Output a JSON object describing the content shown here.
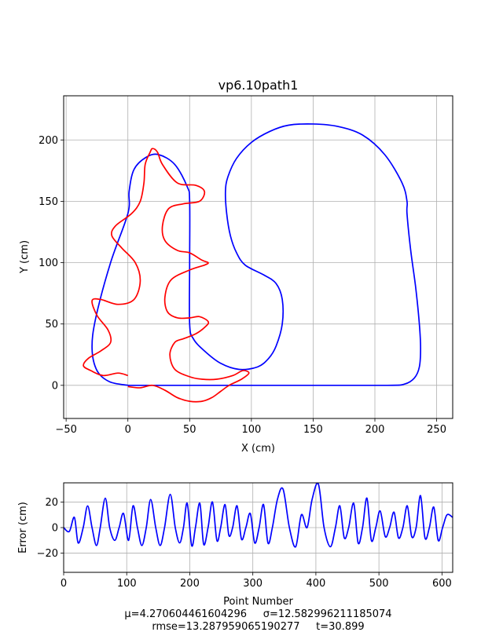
{
  "chart_data": [
    {
      "type": "line",
      "title": "vp6.10path1",
      "xlabel": "X (cm)",
      "ylabel": "Y (cm)",
      "xlim": [
        -52,
        263
      ],
      "ylim": [
        -27,
        236
      ],
      "xticks": [
        -50,
        0,
        50,
        100,
        150,
        200,
        250
      ],
      "yticks": [
        0,
        50,
        100,
        150,
        200
      ],
      "grid": true,
      "series": [
        {
          "color": "#0000ff",
          "x": [
            0,
            -15,
            -25,
            -29,
            -26,
            -14,
            0,
            1,
            5,
            15,
            25,
            38,
            48,
            50,
            50,
            50,
            53,
            62,
            75,
            90,
            105,
            114,
            120,
            125,
            125,
            120,
            110,
            95,
            88,
            83,
            80,
            79,
            81,
            88,
            100,
            115,
            130,
            150,
            170,
            190,
            208,
            222,
            226,
            226,
            229,
            233,
            236,
            237,
            236,
            232,
            224,
            210,
            150,
            50,
            0
          ],
          "y": [
            0,
            3,
            12,
            30,
            55,
            100,
            140,
            158,
            176,
            186,
            188,
            180,
            162,
            150,
            100,
            50,
            38,
            28,
            18,
            13,
            15,
            22,
            32,
            50,
            70,
            83,
            90,
            98,
            108,
            122,
            140,
            158,
            170,
            185,
            198,
            207,
            212,
            213,
            211,
            204,
            188,
            165,
            150,
            140,
            110,
            80,
            50,
            30,
            15,
            6,
            1,
            0,
            0,
            0,
            0
          ]
        },
        {
          "color": "#ff0000",
          "x": [
            0,
            -8,
            -20,
            -30,
            -36,
            -32,
            -22,
            -14,
            -16,
            -25,
            -29,
            -22,
            -8,
            5,
            10,
            6,
            -5,
            -13,
            -10,
            3,
            10,
            13,
            14,
            18,
            20,
            24,
            28,
            40,
            55,
            62,
            58,
            45,
            33,
            28,
            30,
            40,
            50,
            60,
            65,
            62,
            50,
            35,
            30,
            32,
            40,
            50,
            58,
            65,
            63,
            55,
            45,
            38,
            34,
            38,
            50,
            60,
            72,
            85,
            93,
            98,
            92,
            82,
            75,
            68,
            60,
            50,
            40,
            30,
            20,
            10,
            0
          ],
          "y": [
            8,
            10,
            8,
            12,
            16,
            22,
            28,
            35,
            45,
            57,
            69,
            70,
            66,
            70,
            85,
            100,
            112,
            122,
            130,
            140,
            150,
            165,
            180,
            190,
            193,
            190,
            180,
            165,
            163,
            158,
            150,
            148,
            144,
            130,
            118,
            110,
            108,
            102,
            100,
            98,
            94,
            86,
            72,
            60,
            55,
            55,
            56,
            52,
            48,
            42,
            38,
            35,
            25,
            13,
            7,
            5,
            5,
            8,
            12,
            10,
            5,
            0,
            -5,
            -10,
            -13,
            -13,
            -10,
            -4,
            0,
            -2,
            -1
          ]
        }
      ]
    },
    {
      "type": "line",
      "xlabel": "Point Number",
      "ylabel": "Error (cm)",
      "xlim": [
        0,
        617
      ],
      "ylim": [
        -35,
        35
      ],
      "xticks": [
        0,
        100,
        200,
        300,
        400,
        500,
        600
      ],
      "yticks": [
        -20,
        0,
        20
      ],
      "grid": true,
      "series": [
        {
          "color": "#0000ff",
          "x": [
            0,
            9,
            17,
            23,
            31,
            38,
            45,
            52,
            58,
            66,
            73,
            81,
            88,
            95,
            103,
            110,
            117,
            124,
            131,
            138,
            146,
            153,
            160,
            169,
            177,
            184,
            190,
            196,
            203,
            209,
            216,
            222,
            229,
            236,
            243,
            249,
            256,
            262,
            268,
            275,
            282,
            289,
            296,
            303,
            310,
            317,
            324,
            331,
            339,
            348,
            358,
            368,
            377,
            386,
            394,
            404,
            413,
            423,
            431,
            438,
            445,
            452,
            460,
            467,
            474,
            481,
            488,
            495,
            502,
            510,
            517,
            524,
            531,
            538,
            545,
            552,
            559,
            566,
            573,
            580,
            587,
            594,
            601,
            608,
            617
          ],
          "y": [
            0,
            -3,
            8,
            -12,
            0,
            17,
            0,
            -14,
            0,
            23,
            0,
            -10,
            0,
            11,
            -10,
            17,
            0,
            -14,
            0,
            22,
            0,
            -14,
            0,
            26,
            0,
            -12,
            0,
            19,
            -14,
            0,
            19,
            -13,
            0,
            20,
            -10,
            0,
            18,
            -6,
            0,
            17,
            -9,
            0,
            11,
            -12,
            0,
            18,
            -12,
            0,
            22,
            30,
            0,
            -15,
            10,
            0,
            22,
            34,
            0,
            -15,
            0,
            17,
            -8,
            0,
            19,
            -12,
            0,
            23,
            -10,
            0,
            13,
            -7,
            0,
            12,
            -8,
            0,
            17,
            -7,
            0,
            25,
            -8,
            0,
            16,
            -10,
            0,
            10,
            8
          ]
        }
      ]
    }
  ],
  "stats": {
    "line1": "μ=4.270604461604296     σ=12.582996211185074",
    "line2": "rmse=13.287959065190277     t=30.899"
  }
}
